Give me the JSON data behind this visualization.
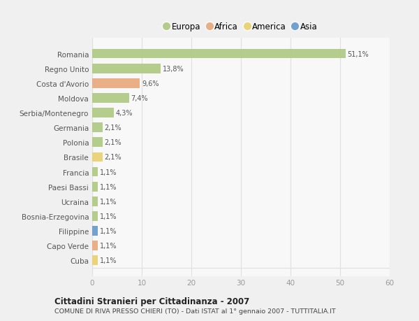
{
  "countries": [
    "Romania",
    "Regno Unito",
    "Costa d'Avorio",
    "Moldova",
    "Serbia/Montenegro",
    "Germania",
    "Polonia",
    "Brasile",
    "Francia",
    "Paesi Bassi",
    "Ucraina",
    "Bosnia-Erzegovina",
    "Filippine",
    "Capo Verde",
    "Cuba"
  ],
  "values": [
    51.1,
    13.8,
    9.6,
    7.4,
    4.3,
    2.1,
    2.1,
    2.1,
    1.1,
    1.1,
    1.1,
    1.1,
    1.1,
    1.1,
    1.1
  ],
  "labels": [
    "51,1%",
    "13,8%",
    "9,6%",
    "7,4%",
    "4,3%",
    "2,1%",
    "2,1%",
    "2,1%",
    "1,1%",
    "1,1%",
    "1,1%",
    "1,1%",
    "1,1%",
    "1,1%",
    "1,1%"
  ],
  "continents": [
    "Europa",
    "Europa",
    "Africa",
    "Europa",
    "Europa",
    "Europa",
    "Europa",
    "America",
    "Europa",
    "Europa",
    "Europa",
    "Europa",
    "Asia",
    "Africa",
    "America"
  ],
  "continent_colors": {
    "Europa": "#adc981",
    "Africa": "#e8a87c",
    "America": "#e8d06e",
    "Asia": "#6699cc"
  },
  "legend_order": [
    "Europa",
    "Africa",
    "America",
    "Asia"
  ],
  "title": "Cittadini Stranieri per Cittadinanza - 2007",
  "subtitle": "COMUNE DI RIVA PRESSO CHIERI (TO) - Dati ISTAT al 1° gennaio 2007 - TUTTITALIA.IT",
  "xlim": [
    0,
    60
  ],
  "xticks": [
    0,
    10,
    20,
    30,
    40,
    50,
    60
  ],
  "background_color": "#f0f0f0",
  "plot_bg_color": "#f8f8f8",
  "grid_color": "#e0e0e0",
  "label_color": "#555555",
  "tick_color": "#999999"
}
